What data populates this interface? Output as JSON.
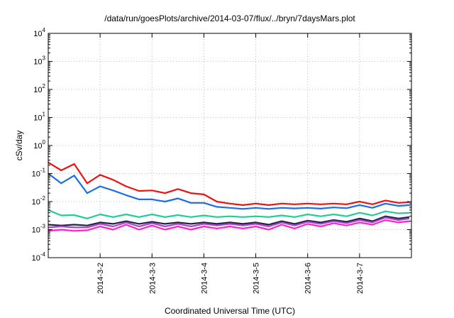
{
  "chart_data": {
    "type": "line",
    "title": "/data/run/goesPlots/archive/2014-03-07/flux/../bryn/7daysMars.plot",
    "xlabel": "Coordinated Universal Time (UTC)",
    "ylabel": "cSv/day",
    "y_scale": "log",
    "ylim": [
      0.0001,
      10000
    ],
    "y_ticks": [
      {
        "value": 0.0001,
        "base": "10",
        "exp": "-4"
      },
      {
        "value": 0.001,
        "base": "10",
        "exp": "-3"
      },
      {
        "value": 0.01,
        "base": "10",
        "exp": "-2"
      },
      {
        "value": 0.1,
        "base": "10",
        "exp": "-1"
      },
      {
        "value": 1,
        "base": "10",
        "exp": "0"
      },
      {
        "value": 10,
        "base": "10",
        "exp": "1"
      },
      {
        "value": 100,
        "base": "10",
        "exp": "2"
      },
      {
        "value": 1000,
        "base": "10",
        "exp": "3"
      },
      {
        "value": 10000,
        "base": "10",
        "exp": "4"
      }
    ],
    "xlim": [
      "2014-03-01T00:00",
      "2014-03-08T00:00"
    ],
    "x_ticks": [
      {
        "value": "2014-03-02T00:00",
        "label": "2014-3-2"
      },
      {
        "value": "2014-03-03T00:00",
        "label": "2014-3-3"
      },
      {
        "value": "2014-03-04T00:00",
        "label": "2014-3-4"
      },
      {
        "value": "2014-03-05T00:00",
        "label": "2014-3-5"
      },
      {
        "value": "2014-03-06T00:00",
        "label": "2014-3-6"
      },
      {
        "value": "2014-03-07T00:00",
        "label": "2014-3-7"
      }
    ],
    "grid": true,
    "legend": "none",
    "x": [
      "2014-03-01T00:00",
      "2014-03-01T06:00",
      "2014-03-01T12:00",
      "2014-03-01T18:00",
      "2014-03-02T00:00",
      "2014-03-02T06:00",
      "2014-03-02T12:00",
      "2014-03-02T18:00",
      "2014-03-03T00:00",
      "2014-03-03T06:00",
      "2014-03-03T12:00",
      "2014-03-03T18:00",
      "2014-03-04T00:00",
      "2014-03-04T06:00",
      "2014-03-04T12:00",
      "2014-03-04T18:00",
      "2014-03-05T00:00",
      "2014-03-05T06:00",
      "2014-03-05T12:00",
      "2014-03-05T18:00",
      "2014-03-06T00:00",
      "2014-03-06T06:00",
      "2014-03-06T12:00",
      "2014-03-06T18:00",
      "2014-03-07T00:00",
      "2014-03-07T06:00",
      "2014-03-07T12:00",
      "2014-03-07T18:00",
      "2014-03-07T23:00"
    ],
    "series": [
      {
        "color": "#ee1111",
        "values": [
          0.25,
          0.13,
          0.22,
          0.045,
          0.09,
          0.06,
          0.035,
          0.024,
          0.025,
          0.02,
          0.028,
          0.02,
          0.018,
          0.01,
          0.0085,
          0.0075,
          0.0085,
          0.0075,
          0.0085,
          0.008,
          0.0085,
          0.008,
          0.0085,
          0.008,
          0.01,
          0.008,
          0.011,
          0.009,
          0.0095
        ]
      },
      {
        "color": "#1a6ee6",
        "values": [
          0.1,
          0.045,
          0.085,
          0.02,
          0.035,
          0.025,
          0.017,
          0.012,
          0.012,
          0.01,
          0.013,
          0.009,
          0.009,
          0.0065,
          0.006,
          0.0055,
          0.006,
          0.0055,
          0.006,
          0.0057,
          0.006,
          0.0056,
          0.0062,
          0.0058,
          0.0075,
          0.006,
          0.0085,
          0.007,
          0.0075
        ]
      },
      {
        "color": "#22cc99",
        "values": [
          0.005,
          0.0032,
          0.0033,
          0.0025,
          0.0035,
          0.0028,
          0.0035,
          0.0028,
          0.0035,
          0.0028,
          0.0033,
          0.0028,
          0.0032,
          0.0028,
          0.003,
          0.0028,
          0.003,
          0.0028,
          0.0032,
          0.0028,
          0.0035,
          0.003,
          0.0035,
          0.003,
          0.004,
          0.0032,
          0.0045,
          0.0038,
          0.004
        ]
      },
      {
        "color": "#222244",
        "values": [
          0.0015,
          0.0014,
          0.0015,
          0.0014,
          0.0018,
          0.0016,
          0.002,
          0.0016,
          0.0019,
          0.0016,
          0.0018,
          0.0016,
          0.0018,
          0.0016,
          0.0018,
          0.0016,
          0.0018,
          0.0015,
          0.002,
          0.0016,
          0.0021,
          0.0018,
          0.0022,
          0.0019,
          0.0025,
          0.002,
          0.003,
          0.0025,
          0.0028
        ]
      },
      {
        "color": "#aa44cc",
        "values": [
          0.0012,
          0.0013,
          0.0012,
          0.0012,
          0.0016,
          0.0013,
          0.0018,
          0.0013,
          0.0017,
          0.0013,
          0.0016,
          0.0013,
          0.0016,
          0.0014,
          0.0016,
          0.0014,
          0.0016,
          0.0013,
          0.0018,
          0.0014,
          0.0019,
          0.0016,
          0.002,
          0.0017,
          0.0022,
          0.0018,
          0.0027,
          0.0022,
          0.0025
        ]
      },
      {
        "color": "#ff22cc",
        "values": [
          0.0009,
          0.001,
          0.0009,
          0.00095,
          0.0013,
          0.001,
          0.0015,
          0.001,
          0.0014,
          0.001,
          0.0013,
          0.001,
          0.0013,
          0.0011,
          0.0013,
          0.0011,
          0.0013,
          0.001,
          0.0015,
          0.0011,
          0.0016,
          0.0013,
          0.0017,
          0.0014,
          0.0018,
          0.0015,
          0.0022,
          0.0018,
          0.002
        ]
      }
    ]
  }
}
